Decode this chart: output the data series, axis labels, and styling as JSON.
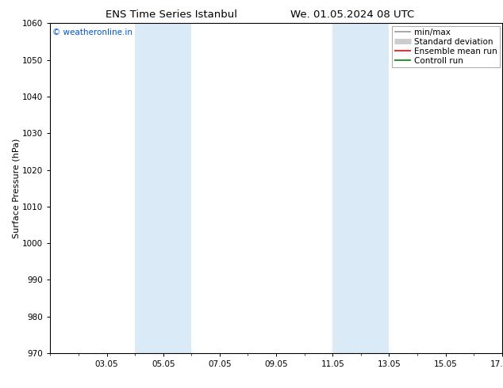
{
  "title_left": "ENS Time Series Istanbul",
  "title_right": "We. 01.05.2024 08 UTC",
  "ylabel": "Surface Pressure (hPa)",
  "ylim": [
    970,
    1060
  ],
  "yticks": [
    970,
    980,
    990,
    1000,
    1010,
    1020,
    1030,
    1040,
    1050,
    1060
  ],
  "xlim_start": 0,
  "xlim_end": 16,
  "xtick_positions": [
    2,
    4,
    6,
    8,
    10,
    12,
    14,
    16
  ],
  "xtick_labels": [
    "03.05",
    "05.05",
    "07.05",
    "09.05",
    "11.05",
    "13.05",
    "15.05",
    "17.05"
  ],
  "shade_bands": [
    {
      "xmin": 3.0,
      "xmax": 5.0,
      "color": "#daeaf7"
    },
    {
      "xmin": 10.0,
      "xmax": 12.0,
      "color": "#daeaf7"
    }
  ],
  "watermark_text": "© weatheronline.in",
  "watermark_color": "#0055cc",
  "legend_items": [
    {
      "label": "min/max",
      "color": "#999999",
      "lw": 1.2
    },
    {
      "label": "Standard deviation",
      "color": "#cccccc",
      "lw": 5
    },
    {
      "label": "Ensemble mean run",
      "color": "#ff0000",
      "lw": 1.2
    },
    {
      "label": "Controll run",
      "color": "#008800",
      "lw": 1.2
    }
  ],
  "bg_color": "#ffffff",
  "title_fontsize": 9.5,
  "axis_label_fontsize": 8,
  "tick_fontsize": 7.5,
  "legend_fontsize": 7.5,
  "watermark_fontsize": 7.5
}
